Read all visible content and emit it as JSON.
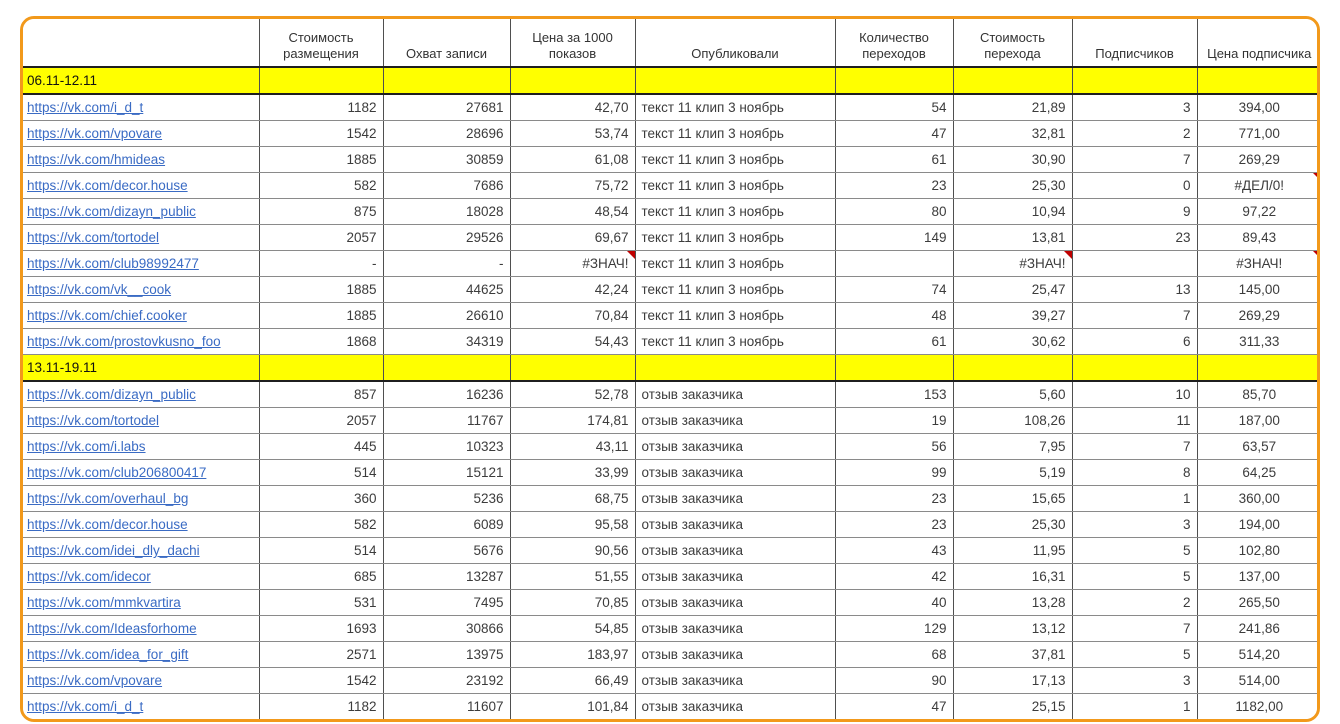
{
  "colors": {
    "table_border": "#F2991B",
    "section_fill": "#FFFF00",
    "link": "#3A6BC4",
    "comment_indicator": "#C00000",
    "gridline": "#4f4f4f"
  },
  "table": {
    "columns": [
      {
        "key": "link",
        "label": "",
        "align": "left"
      },
      {
        "key": "placement_cost",
        "label": "Стоимость размещения",
        "align": "right"
      },
      {
        "key": "reach",
        "label": "Охват записи",
        "align": "right"
      },
      {
        "key": "cpm",
        "label": "Цена за 1000 показов",
        "align": "right"
      },
      {
        "key": "published",
        "label": "Опубликовали",
        "align": "left"
      },
      {
        "key": "clicks",
        "label": "Количество переходов",
        "align": "right"
      },
      {
        "key": "cpc",
        "label": "Стоимость перехода",
        "align": "right"
      },
      {
        "key": "subscribers",
        "label": "Подписчиков",
        "align": "right"
      },
      {
        "key": "cps",
        "label": "Цена подписчика",
        "align": "center"
      }
    ],
    "sections": [
      {
        "title": "06.11-12.11",
        "rows": [
          {
            "link": "https://vk.com/i_d_t",
            "placement_cost": "1182",
            "reach": "27681",
            "cpm": "42,70",
            "published": "текст 11 клип 3 ноябрь",
            "clicks": "54",
            "cpc": "21,89",
            "subscribers": "3",
            "cps": "394,00"
          },
          {
            "link": "https://vk.com/vpovare",
            "placement_cost": "1542",
            "reach": "28696",
            "cpm": "53,74",
            "published": "текст 11 клип 3 ноябрь",
            "clicks": "47",
            "cpc": "32,81",
            "subscribers": "2",
            "cps": "771,00"
          },
          {
            "link": "https://vk.com/hmideas",
            "placement_cost": "1885",
            "reach": "30859",
            "cpm": "61,08",
            "published": "текст 11 клип 3 ноябрь",
            "clicks": "61",
            "cpc": "30,90",
            "subscribers": "7",
            "cps": "269,29"
          },
          {
            "link": "https://vk.com/decor.house",
            "placement_cost": "582",
            "reach": "7686",
            "cpm": "75,72",
            "published": "текст 11 клип 3 ноябрь",
            "clicks": "23",
            "cpc": "25,30",
            "subscribers": "0",
            "cps": "#ДЕЛ/0!",
            "comment_flags": [
              "cps"
            ]
          },
          {
            "link": "https://vk.com/dizayn_public",
            "placement_cost": "875",
            "reach": "18028",
            "cpm": "48,54",
            "published": "текст 11 клип 3 ноябрь",
            "clicks": "80",
            "cpc": "10,94",
            "subscribers": "9",
            "cps": "97,22"
          },
          {
            "link": "https://vk.com/tortodel",
            "placement_cost": "2057",
            "reach": "29526",
            "cpm": "69,67",
            "published": "текст 11 клип 3 ноябрь",
            "clicks": "149",
            "cpc": "13,81",
            "subscribers": "23",
            "cps": "89,43"
          },
          {
            "link": "https://vk.com/club98992477",
            "placement_cost": "-",
            "reach": "-",
            "cpm": "#ЗНАЧ!",
            "published": "текст 11 клип 3 ноябрь",
            "clicks": "",
            "cpc": "#ЗНАЧ!",
            "subscribers": "",
            "cps": "#ЗНАЧ!",
            "comment_flags": [
              "cpm",
              "cpc",
              "cps"
            ]
          },
          {
            "link": "https://vk.com/vk__cook",
            "placement_cost": "1885",
            "reach": "44625",
            "cpm": "42,24",
            "published": "текст 11 клип 3 ноябрь",
            "clicks": "74",
            "cpc": "25,47",
            "subscribers": "13",
            "cps": "145,00"
          },
          {
            "link": "https://vk.com/chief.cooker",
            "placement_cost": "1885",
            "reach": "26610",
            "cpm": "70,84",
            "published": "текст 11 клип 3 ноябрь",
            "clicks": "48",
            "cpc": "39,27",
            "subscribers": "7",
            "cps": "269,29"
          },
          {
            "link": "https://vk.com/prostovkusno_foo",
            "placement_cost": "1868",
            "reach": "34319",
            "cpm": "54,43",
            "published": "текст 11 клип 3 ноябрь",
            "clicks": "61",
            "cpc": "30,62",
            "subscribers": "6",
            "cps": "311,33"
          }
        ]
      },
      {
        "title": "13.11-19.11",
        "rows": [
          {
            "link": "https://vk.com/dizayn_public",
            "placement_cost": "857",
            "reach": "16236",
            "cpm": "52,78",
            "published": "отзыв заказчика",
            "clicks": "153",
            "cpc": "5,60",
            "subscribers": "10",
            "cps": "85,70"
          },
          {
            "link": "https://vk.com/tortodel",
            "placement_cost": "2057",
            "reach": "11767",
            "cpm": "174,81",
            "published": "отзыв заказчика",
            "clicks": "19",
            "cpc": "108,26",
            "subscribers": "11",
            "cps": "187,00"
          },
          {
            "link": "https://vk.com/i.labs",
            "placement_cost": "445",
            "reach": "10323",
            "cpm": "43,11",
            "published": "отзыв заказчика",
            "clicks": "56",
            "cpc": "7,95",
            "subscribers": "7",
            "cps": "63,57"
          },
          {
            "link": "https://vk.com/club206800417",
            "placement_cost": "514",
            "reach": "15121",
            "cpm": "33,99",
            "published": "отзыв заказчика",
            "clicks": "99",
            "cpc": "5,19",
            "subscribers": "8",
            "cps": "64,25"
          },
          {
            "link": "https://vk.com/overhaul_bg",
            "placement_cost": "360",
            "reach": "5236",
            "cpm": "68,75",
            "published": "отзыв заказчика",
            "clicks": "23",
            "cpc": "15,65",
            "subscribers": "1",
            "cps": "360,00"
          },
          {
            "link": "https://vk.com/decor.house",
            "placement_cost": "582",
            "reach": "6089",
            "cpm": "95,58",
            "published": "отзыв заказчика",
            "clicks": "23",
            "cpc": "25,30",
            "subscribers": "3",
            "cps": "194,00"
          },
          {
            "link": "https://vk.com/idei_dly_dachi",
            "placement_cost": "514",
            "reach": "5676",
            "cpm": "90,56",
            "published": "отзыв заказчика",
            "clicks": "43",
            "cpc": "11,95",
            "subscribers": "5",
            "cps": "102,80"
          },
          {
            "link": "https://vk.com/idecor",
            "placement_cost": "685",
            "reach": "13287",
            "cpm": "51,55",
            "published": "отзыв заказчика",
            "clicks": "42",
            "cpc": "16,31",
            "subscribers": "5",
            "cps": "137,00"
          },
          {
            "link": "https://vk.com/mmkvartira",
            "placement_cost": "531",
            "reach": "7495",
            "cpm": "70,85",
            "published": "отзыв заказчика",
            "clicks": "40",
            "cpc": "13,28",
            "subscribers": "2",
            "cps": "265,50"
          },
          {
            "link": "https://vk.com/Ideasforhome",
            "placement_cost": "1693",
            "reach": "30866",
            "cpm": "54,85",
            "published": "отзыв заказчика",
            "clicks": "129",
            "cpc": "13,12",
            "subscribers": "7",
            "cps": "241,86"
          },
          {
            "link": "https://vk.com/idea_for_gift",
            "placement_cost": "2571",
            "reach": "13975",
            "cpm": "183,97",
            "published": "отзыв заказчика",
            "clicks": "68",
            "cpc": "37,81",
            "subscribers": "5",
            "cps": "514,20"
          },
          {
            "link": "https://vk.com/vpovare",
            "placement_cost": "1542",
            "reach": "23192",
            "cpm": "66,49",
            "published": "отзыв заказчика",
            "clicks": "90",
            "cpc": "17,13",
            "subscribers": "3",
            "cps": "514,00"
          },
          {
            "link": "https://vk.com/i_d_t",
            "placement_cost": "1182",
            "reach": "11607",
            "cpm": "101,84",
            "published": "отзыв заказчика",
            "clicks": "47",
            "cpc": "25,15",
            "subscribers": "1",
            "cps": "1182,00"
          }
        ]
      }
    ]
  }
}
